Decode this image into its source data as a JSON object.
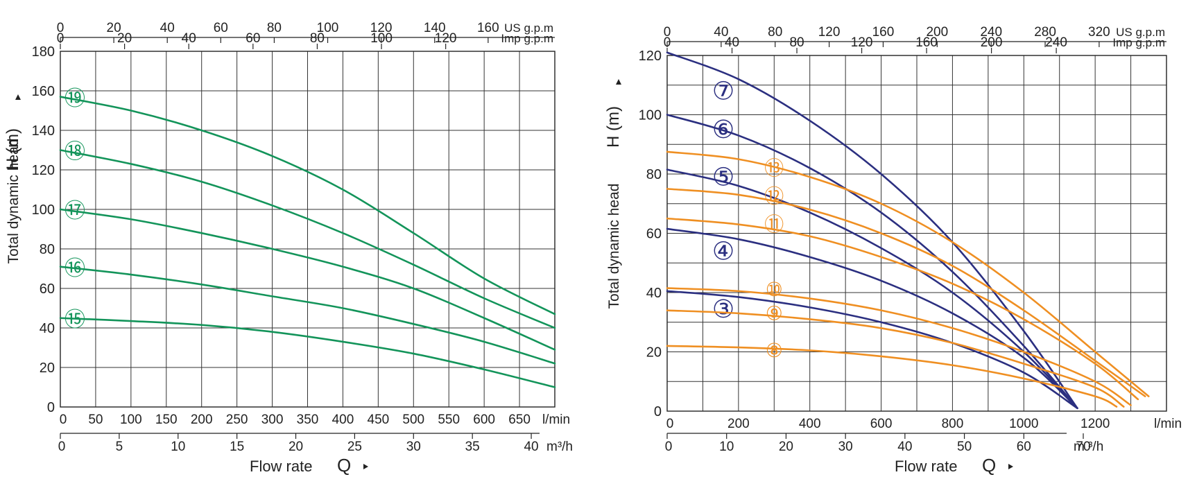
{
  "chart_data": [
    {
      "type": "line",
      "xlabel": "Flow rate",
      "xlabel_symbol": "Q",
      "ylabel": "Total dynamic head",
      "ylabel_unit": "H (m)",
      "xlim": [
        0,
        700
      ],
      "ylim": [
        0,
        180
      ],
      "x_ticks": [
        "0",
        "50",
        "100",
        "150",
        "200",
        "250",
        "300",
        "350",
        "400",
        "450",
        "500",
        "550",
        "600",
        "650"
      ],
      "x_unit": "l/min",
      "y_ticks": [
        "0",
        "20",
        "40",
        "60",
        "80",
        "100",
        "120",
        "140",
        "160",
        "180"
      ],
      "m3h_ticks": [
        "0",
        "5",
        "10",
        "15",
        "20",
        "25",
        "30",
        "35",
        "40"
      ],
      "m3h_unit": "m³/h",
      "usgpm_ticks": [
        "0",
        "20",
        "40",
        "60",
        "80",
        "100",
        "120",
        "140",
        "160"
      ],
      "usgpm_unit": "US g.p.m",
      "impgpm_ticks": [
        "0",
        "20",
        "40",
        "60",
        "80",
        "100",
        "120"
      ],
      "impgpm_unit": "Imp g.p.m",
      "grid": true,
      "color": "#13945a",
      "series": [
        {
          "name": "⑲",
          "x": [
            0,
            100,
            200,
            300,
            400,
            500,
            600,
            700
          ],
          "values": [
            157,
            150,
            140,
            127,
            110,
            88,
            65,
            47
          ]
        },
        {
          "name": "⑱",
          "x": [
            0,
            100,
            200,
            300,
            400,
            500,
            600,
            700
          ],
          "values": [
            130,
            123,
            114,
            102,
            88,
            72,
            55,
            40
          ]
        },
        {
          "name": "⑰",
          "x": [
            0,
            100,
            200,
            300,
            400,
            500,
            600,
            700
          ],
          "values": [
            100,
            95,
            88,
            80,
            71,
            60,
            45,
            29
          ]
        },
        {
          "name": "⑯",
          "x": [
            0,
            100,
            200,
            300,
            400,
            500,
            600,
            700
          ],
          "values": [
            71,
            67,
            62,
            56,
            50,
            42,
            33,
            22
          ]
        },
        {
          "name": "⑮",
          "x": [
            0,
            100,
            200,
            300,
            400,
            500,
            600,
            700
          ],
          "values": [
            45,
            43.5,
            41.5,
            38,
            33,
            27,
            19,
            10
          ]
        }
      ]
    },
    {
      "type": "line",
      "xlabel": "Flow rate",
      "xlabel_symbol": "Q",
      "ylabel": "Total dynamic head",
      "ylabel_unit": "H (m)",
      "xlim": [
        0,
        1400
      ],
      "ylim": [
        0,
        120
      ],
      "x_ticks": [
        "0",
        "200",
        "400",
        "600",
        "800",
        "1000",
        "1200"
      ],
      "x_unit": "l/min",
      "y_ticks": [
        "0",
        "20",
        "40",
        "60",
        "80",
        "100",
        "120"
      ],
      "m3h_ticks": [
        "0",
        "10",
        "20",
        "30",
        "40",
        "50",
        "60",
        "70"
      ],
      "m3h_unit": "m ³/h",
      "usgpm_ticks": [
        "0",
        "40",
        "80",
        "120",
        "160",
        "200",
        "240",
        "280",
        "320"
      ],
      "usgpm_unit": "US g.p.m",
      "impgpm_ticks": [
        "0",
        "40",
        "80",
        "120",
        "160",
        "200",
        "240"
      ],
      "impgpm_unit": "Imp g.p.m",
      "grid": true,
      "colors": {
        "blue": "#2b2f80",
        "orange": "#ef8f22"
      },
      "series": [
        {
          "name": "⑦",
          "color": "blue",
          "x": [
            0,
            200,
            400,
            600,
            800,
            1000,
            1150
          ],
          "values": [
            121,
            112,
            98,
            80,
            57,
            27,
            1
          ]
        },
        {
          "name": "⑥",
          "color": "blue",
          "x": [
            0,
            200,
            400,
            600,
            800,
            1000,
            1150
          ],
          "values": [
            100,
            93,
            82,
            67,
            47,
            22,
            1
          ]
        },
        {
          "name": "⑤",
          "color": "blue",
          "x": [
            0,
            200,
            400,
            600,
            800,
            1000,
            1150
          ],
          "values": [
            81.5,
            76,
            67,
            55,
            40,
            20,
            1
          ]
        },
        {
          "name": "④",
          "color": "blue",
          "x": [
            0,
            200,
            400,
            600,
            800,
            1000,
            1150
          ],
          "values": [
            61.5,
            58,
            52,
            44,
            33,
            18,
            1
          ]
        },
        {
          "name": "③",
          "color": "blue",
          "x": [
            0,
            200,
            400,
            600,
            800,
            1000,
            1150
          ],
          "values": [
            40.5,
            38.5,
            35,
            30,
            23,
            13,
            1
          ]
        },
        {
          "name": "⑬",
          "color": "orange",
          "x": [
            0,
            200,
            400,
            600,
            800,
            1000,
            1200,
            1350
          ],
          "values": [
            87.5,
            85,
            79,
            70,
            57,
            40,
            20,
            5
          ]
        },
        {
          "name": "⑫",
          "color": "orange",
          "x": [
            0,
            200,
            400,
            600,
            800,
            1000,
            1200,
            1340
          ],
          "values": [
            75,
            73,
            68,
            60,
            49,
            34,
            17,
            5
          ]
        },
        {
          "name": "⑪",
          "color": "orange",
          "x": [
            0,
            200,
            400,
            600,
            800,
            1000,
            1200,
            1320
          ],
          "values": [
            65,
            63,
            59,
            52,
            43,
            31,
            16,
            4
          ]
        },
        {
          "name": "⑩",
          "color": "orange",
          "x": [
            0,
            200,
            400,
            600,
            800,
            1000,
            1200,
            1300
          ],
          "values": [
            41.5,
            40.5,
            38,
            34,
            28,
            20,
            10,
            2
          ]
        },
        {
          "name": "⑨",
          "color": "orange",
          "x": [
            0,
            200,
            400,
            600,
            800,
            1000,
            1200,
            1280
          ],
          "values": [
            34,
            33,
            31,
            28,
            23,
            16,
            8,
            1.5
          ]
        },
        {
          "name": "⑧",
          "color": "orange",
          "x": [
            0,
            200,
            400,
            600,
            800,
            1000,
            1200,
            1260
          ],
          "values": [
            22,
            21.5,
            20.5,
            18.5,
            15.5,
            11,
            5,
            1.5
          ]
        }
      ]
    }
  ]
}
